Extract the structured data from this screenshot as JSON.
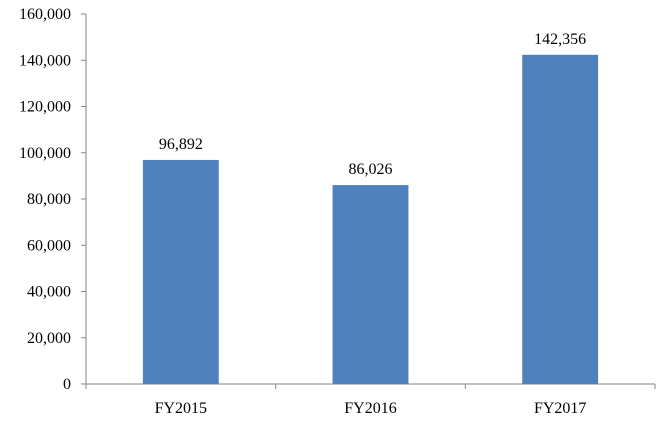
{
  "chart_data": {
    "type": "bar",
    "categories": [
      "FY2015",
      "FY2016",
      "FY2017"
    ],
    "values": [
      96892,
      86026,
      142356
    ],
    "value_labels": [
      "96,892",
      "86,026",
      "142,356"
    ],
    "ylim": [
      0,
      160000
    ],
    "y_ticks": [
      0,
      20000,
      40000,
      60000,
      80000,
      100000,
      120000,
      140000,
      160000
    ],
    "y_tick_labels": [
      "0",
      "20,000",
      "40,000",
      "60,000",
      "80,000",
      "100,000",
      "120,000",
      "140,000",
      "160,000"
    ],
    "grid": false,
    "legend": "none",
    "bar_color": "#4f81bd"
  }
}
